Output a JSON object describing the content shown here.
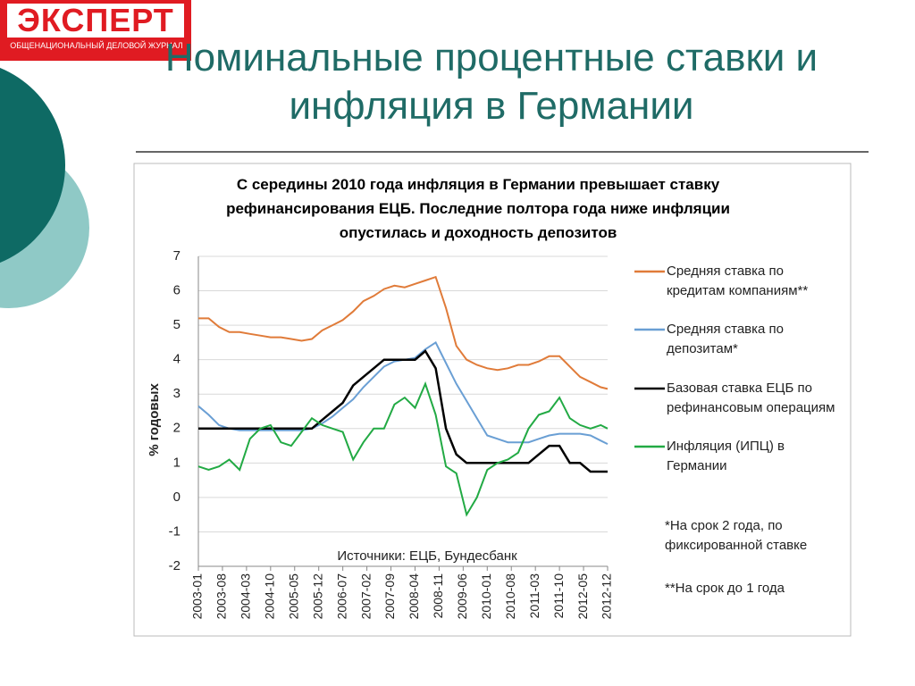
{
  "logo": {
    "name": "ЭКСПЕРТ",
    "tagline": "ОБЩЕНАЦИОНАЛЬНЫЙ ДЕЛОВОЙ ЖУРНАЛ"
  },
  "title": "Номинальные процентные ставки и инфляция в Германии",
  "chart_data": {
    "type": "line",
    "title": "С середины 2010 года инфляция в Германии превышает ставку рефинансирования ЕЦБ. Последние полтора года ниже инфляции опустилась и доходность депозитов",
    "y_label": "% годовых",
    "source": "Источники: ЕЦБ, Бундесбанк",
    "notes": [
      "*На срок 2 года, по фиксированной ставке",
      "**На срок до 1 года"
    ],
    "x": [
      "2003-01",
      "2003-04",
      "2003-07",
      "2003-10",
      "2004-01",
      "2004-04",
      "2004-07",
      "2004-10",
      "2005-01",
      "2005-04",
      "2005-07",
      "2005-10",
      "2006-01",
      "2006-04",
      "2006-07",
      "2006-10",
      "2007-01",
      "2007-04",
      "2007-07",
      "2007-10",
      "2008-01",
      "2008-04",
      "2008-07",
      "2008-10",
      "2009-01",
      "2009-04",
      "2009-07",
      "2009-10",
      "2010-01",
      "2010-04",
      "2010-07",
      "2010-10",
      "2011-01",
      "2011-04",
      "2011-07",
      "2011-10",
      "2012-01",
      "2012-04",
      "2012-07",
      "2012-10",
      "2012-12"
    ],
    "xticks": [
      "2003-01",
      "2003-08",
      "2004-03",
      "2004-10",
      "2005-05",
      "2005-12",
      "2006-07",
      "2007-02",
      "2007-09",
      "2008-04",
      "2008-11",
      "2009-06",
      "2010-01",
      "2010-08",
      "2011-03",
      "2011-10",
      "2012-05",
      "2012-12"
    ],
    "ylim": [
      -2,
      7
    ],
    "yticks": [
      -2,
      -1,
      0,
      1,
      2,
      3,
      4,
      5,
      6,
      7
    ],
    "grid": true,
    "series": [
      {
        "name": "Средняя ставка по кредитам компаниям**",
        "color": "#e07b39",
        "values": [
          5.2,
          5.2,
          4.95,
          4.8,
          4.8,
          4.75,
          4.7,
          4.65,
          4.65,
          4.6,
          4.55,
          4.6,
          4.85,
          5.0,
          5.15,
          5.4,
          5.7,
          5.85,
          6.05,
          6.15,
          6.1,
          6.2,
          6.3,
          6.4,
          5.5,
          4.4,
          4.0,
          3.85,
          3.75,
          3.7,
          3.75,
          3.85,
          3.85,
          3.95,
          4.1,
          4.1,
          3.8,
          3.5,
          3.35,
          3.2,
          3.15
        ]
      },
      {
        "name": "Средняя ставка по депозитам*",
        "color": "#6a9fd4",
        "values": [
          2.65,
          2.4,
          2.1,
          2.0,
          1.95,
          1.95,
          1.95,
          1.95,
          1.95,
          1.95,
          1.95,
          2.0,
          2.15,
          2.35,
          2.6,
          2.85,
          3.2,
          3.5,
          3.8,
          3.95,
          4.0,
          4.05,
          4.3,
          4.5,
          3.9,
          3.3,
          2.8,
          2.3,
          1.8,
          1.7,
          1.6,
          1.6,
          1.6,
          1.7,
          1.8,
          1.85,
          1.85,
          1.85,
          1.8,
          1.65,
          1.55
        ]
      },
      {
        "name": "Базовая ставка ЕЦБ по рефинансовым операциям",
        "color": "#000000",
        "values": [
          2.0,
          2.0,
          2.0,
          2.0,
          2.0,
          2.0,
          2.0,
          2.0,
          2.0,
          2.0,
          2.0,
          2.0,
          2.25,
          2.5,
          2.75,
          3.25,
          3.5,
          3.75,
          4.0,
          4.0,
          4.0,
          4.0,
          4.25,
          3.75,
          2.0,
          1.25,
          1.0,
          1.0,
          1.0,
          1.0,
          1.0,
          1.0,
          1.0,
          1.25,
          1.5,
          1.5,
          1.0,
          1.0,
          0.75,
          0.75,
          0.75
        ]
      },
      {
        "name": "Инфляция (ИПЦ) в Германии",
        "color": "#22aa44",
        "values": [
          0.9,
          0.8,
          0.9,
          1.1,
          0.8,
          1.7,
          2.0,
          2.1,
          1.6,
          1.5,
          1.9,
          2.3,
          2.1,
          2.0,
          1.9,
          1.1,
          1.6,
          2.0,
          2.0,
          2.7,
          2.9,
          2.6,
          3.3,
          2.4,
          0.9,
          0.7,
          -0.5,
          0.0,
          0.8,
          1.0,
          1.1,
          1.3,
          2.0,
          2.4,
          2.5,
          2.9,
          2.3,
          2.1,
          2.0,
          2.1,
          2.0
        ]
      }
    ]
  }
}
